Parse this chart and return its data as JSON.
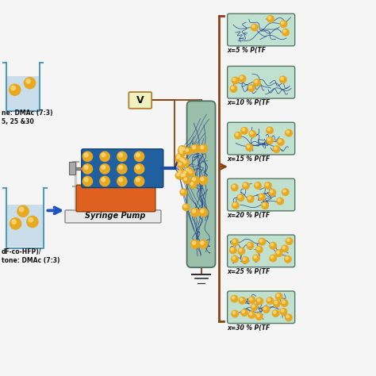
{
  "background_color": "#f5f5f5",
  "np_color": "#e8a820",
  "np_shine_color": "#f8d878",
  "fiber_color": "#1a3a8a",
  "beaker_edge_color": "#5599bb",
  "beaker_liquid_color": "#c0d8e8",
  "arrow_color": "#2255bb",
  "syringe_blue_color": "#2060a0",
  "syringe_orange_color": "#e06020",
  "syringe_gray_color": "#909090",
  "syringe_darkgray_color": "#666666",
  "pump_base_color": "#e8e8e8",
  "pump_base_edge": "#888888",
  "wire_color": "#8b4010",
  "vbox_fill": "#f0f0c0",
  "vbox_edge": "#b08030",
  "collector_fill": "#9abfaa",
  "collector_edge": "#507060",
  "fiber_box_fill": "#c0e0d0",
  "fiber_box_edge": "#557766",
  "bracket_color": "#8b4010",
  "label_color": "#111111",
  "percentages": [
    "x=5 % P(TF",
    "x=10 % P(TF",
    "x=15 % P(TF",
    "x=20 % P(TF",
    "x=25 % P(TF",
    "x=30 % P(TF"
  ],
  "n_particles_list": [
    4,
    6,
    9,
    12,
    15,
    18
  ],
  "syringe_pump_label": "Syringe Pump"
}
